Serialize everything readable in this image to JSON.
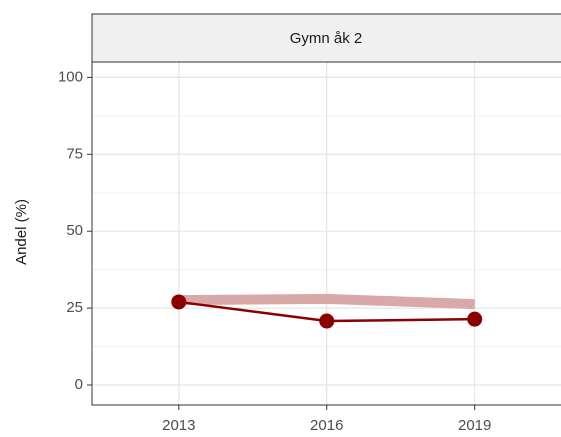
{
  "chart_data": {
    "type": "line",
    "facet_title": "Gymn åk 2",
    "y_label": "Andel (%)",
    "x": [
      2013,
      2016,
      2019
    ],
    "series": [
      {
        "color": "#d9a9a9",
        "values": [
          27.6,
          28,
          26.3
        ],
        "width": 10
      },
      {
        "color": "#8b0000",
        "values": [
          27,
          20.8,
          21.4
        ],
        "width": 2.5,
        "markers": true
      }
    ],
    "xlim": [
      2011.24,
      2020.75
    ],
    "xticks": [
      2013,
      2016,
      2019
    ],
    "ylim": [
      -6.5,
      105
    ],
    "yticks": [
      0,
      25,
      50,
      75,
      100
    ],
    "y_minor_ticks": [
      12.5,
      37.5,
      62.5,
      87.5
    ],
    "grid": true
  }
}
